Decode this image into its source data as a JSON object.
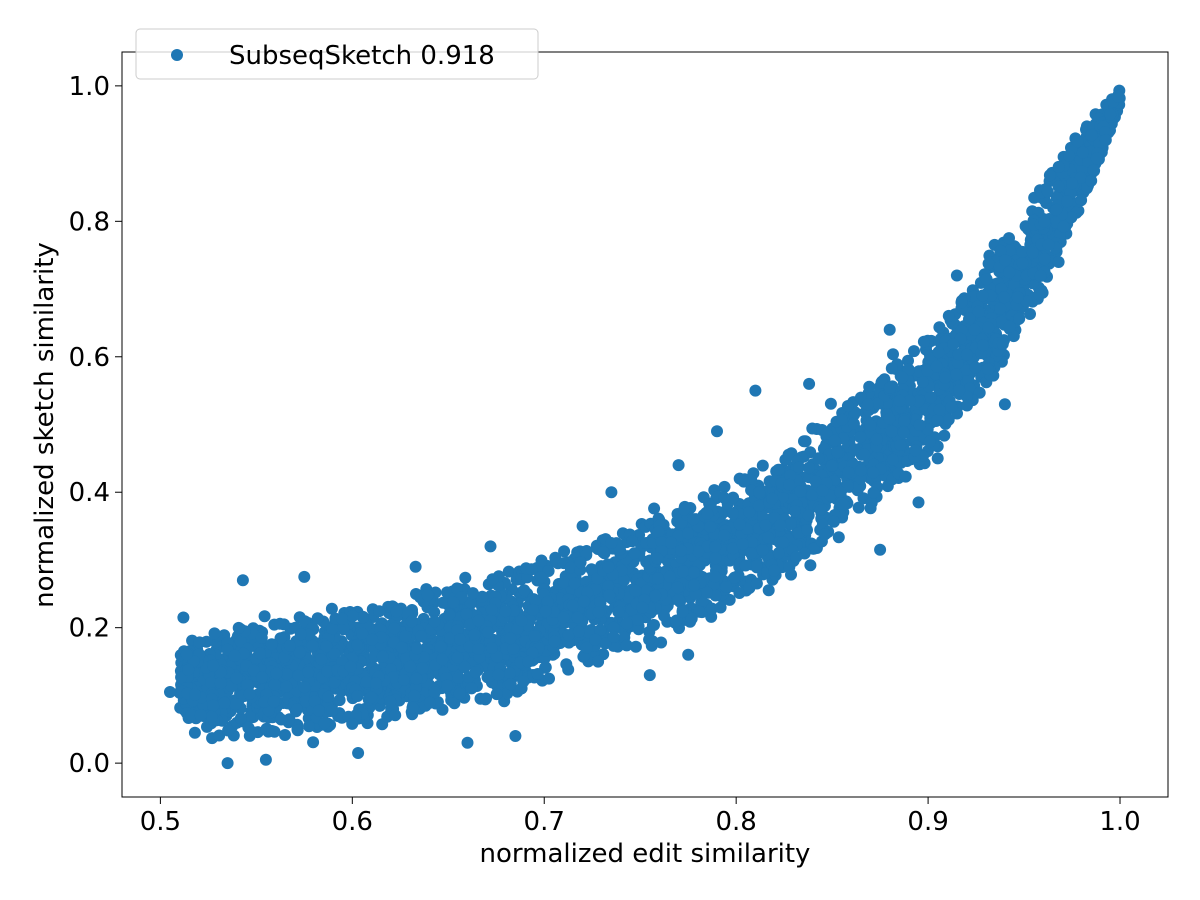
{
  "chart_data": {
    "type": "scatter",
    "title": "",
    "xlabel": "normalized edit similarity",
    "ylabel": "normalized sketch similarity",
    "xlim": [
      0.48,
      1.025
    ],
    "ylim": [
      -0.05,
      1.05
    ],
    "x_ticks": [
      0.5,
      0.6,
      0.7,
      0.8,
      0.9,
      1.0
    ],
    "x_tick_labels": [
      "0.5",
      "0.6",
      "0.7",
      "0.8",
      "0.9",
      "1.0"
    ],
    "y_ticks": [
      0.0,
      0.2,
      0.4,
      0.6,
      0.8,
      1.0
    ],
    "y_tick_labels": [
      "0.0",
      "0.2",
      "0.4",
      "0.6",
      "0.8",
      "1.0"
    ],
    "grid": false,
    "legend_position": "top-left",
    "series": [
      {
        "name": "SubseqSketch 0.918",
        "color": "#1f77b4",
        "marker": "circle",
        "band": [
          {
            "x": 0.51,
            "y_min": 0.05,
            "y_max": 0.18
          },
          {
            "x": 0.53,
            "y_min": 0.02,
            "y_max": 0.22
          },
          {
            "x": 0.55,
            "y_min": 0.02,
            "y_max": 0.23
          },
          {
            "x": 0.57,
            "y_min": 0.02,
            "y_max": 0.24
          },
          {
            "x": 0.6,
            "y_min": 0.03,
            "y_max": 0.25
          },
          {
            "x": 0.62,
            "y_min": 0.04,
            "y_max": 0.26
          },
          {
            "x": 0.65,
            "y_min": 0.05,
            "y_max": 0.29
          },
          {
            "x": 0.68,
            "y_min": 0.07,
            "y_max": 0.31
          },
          {
            "x": 0.7,
            "y_min": 0.09,
            "y_max": 0.33
          },
          {
            "x": 0.72,
            "y_min": 0.11,
            "y_max": 0.35
          },
          {
            "x": 0.75,
            "y_min": 0.14,
            "y_max": 0.38
          },
          {
            "x": 0.78,
            "y_min": 0.17,
            "y_max": 0.42
          },
          {
            "x": 0.8,
            "y_min": 0.21,
            "y_max": 0.45
          },
          {
            "x": 0.82,
            "y_min": 0.24,
            "y_max": 0.48
          },
          {
            "x": 0.85,
            "y_min": 0.3,
            "y_max": 0.54
          },
          {
            "x": 0.88,
            "y_min": 0.37,
            "y_max": 0.61
          },
          {
            "x": 0.9,
            "y_min": 0.42,
            "y_max": 0.66
          },
          {
            "x": 0.92,
            "y_min": 0.49,
            "y_max": 0.72
          },
          {
            "x": 0.94,
            "y_min": 0.57,
            "y_max": 0.8
          },
          {
            "x": 0.96,
            "y_min": 0.67,
            "y_max": 0.88
          },
          {
            "x": 0.98,
            "y_min": 0.8,
            "y_max": 0.95
          },
          {
            "x": 1.0,
            "y_min": 0.97,
            "y_max": 1.0
          }
        ],
        "outliers": [
          [
            0.505,
            0.105
          ],
          [
            0.512,
            0.215
          ],
          [
            0.518,
            0.045
          ],
          [
            0.535,
            0.0
          ],
          [
            0.543,
            0.27
          ],
          [
            0.555,
            0.005
          ],
          [
            0.575,
            0.275
          ],
          [
            0.603,
            0.015
          ],
          [
            0.633,
            0.29
          ],
          [
            0.66,
            0.03
          ],
          [
            0.672,
            0.32
          ],
          [
            0.685,
            0.04
          ],
          [
            0.72,
            0.35
          ],
          [
            0.735,
            0.4
          ],
          [
            0.755,
            0.13
          ],
          [
            0.77,
            0.44
          ],
          [
            0.775,
            0.16
          ],
          [
            0.79,
            0.49
          ],
          [
            0.81,
            0.55
          ],
          [
            0.838,
            0.56
          ],
          [
            0.875,
            0.315
          ],
          [
            0.88,
            0.64
          ],
          [
            0.895,
            0.385
          ],
          [
            0.905,
            0.45
          ],
          [
            0.915,
            0.72
          ],
          [
            0.94,
            0.53
          ],
          [
            0.968,
            0.74
          ],
          [
            0.985,
            0.86
          ]
        ]
      }
    ]
  }
}
